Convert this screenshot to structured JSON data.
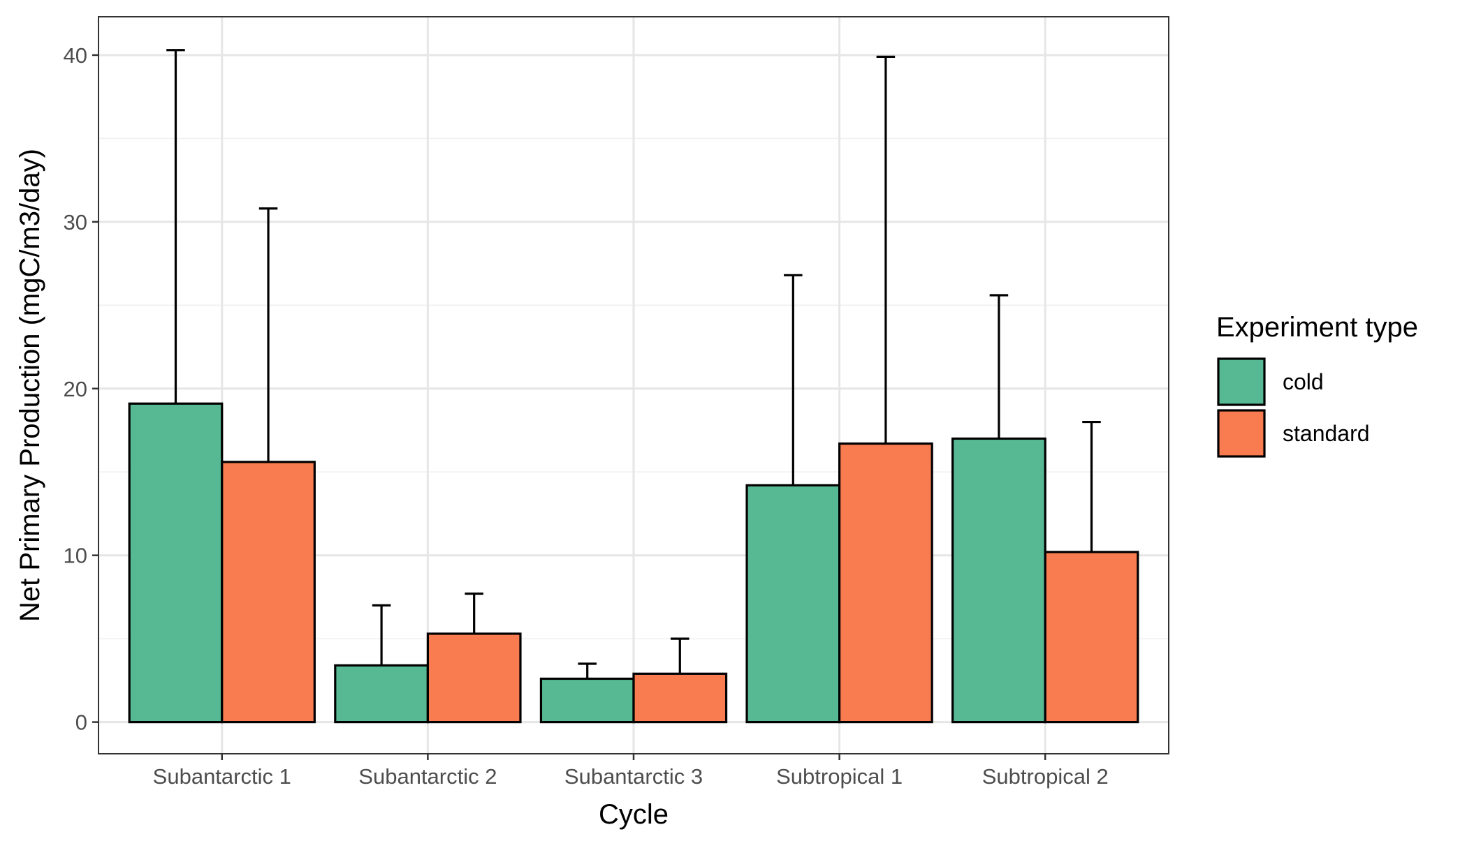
{
  "chart_data": {
    "type": "bar",
    "categories": [
      "Subantarctic 1",
      "Subantarctic 2",
      "Subantarctic 3",
      "Subtropical 1",
      "Subtropical 2"
    ],
    "series": [
      {
        "name": "cold",
        "values": [
          19.1,
          3.4,
          2.6,
          14.2,
          17.0
        ],
        "error_upper": [
          40.3,
          7.0,
          3.5,
          26.8,
          25.6
        ],
        "color": "#57b894"
      },
      {
        "name": "standard",
        "values": [
          15.6,
          5.3,
          2.9,
          16.7,
          10.2
        ],
        "error_upper": [
          30.8,
          7.7,
          5.0,
          39.9,
          18.0
        ],
        "color": "#f97b50"
      }
    ],
    "xlabel": "Cycle",
    "ylabel": "Net Primary Production (mgC/m3/day)",
    "ylim": [
      -1.9,
      42.3
    ],
    "yticks": [
      0,
      10,
      20,
      30,
      40
    ],
    "ytick_labels": [
      "0",
      "10",
      "20",
      "30",
      "40"
    ],
    "grid": true,
    "legend": {
      "title": "Experiment type",
      "position": "right"
    },
    "bar_outline_color": "#000000",
    "panel_border_color": "#333333",
    "grid_color": "#e6e6e6"
  }
}
